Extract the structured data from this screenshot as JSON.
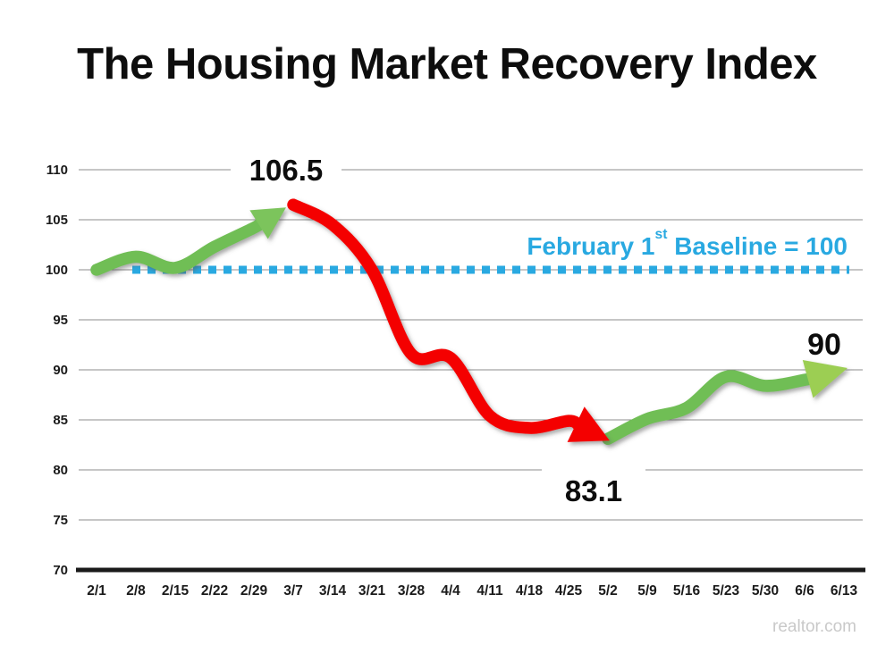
{
  "title": "The Housing Market Recovery Index",
  "watermark": "realtor.com",
  "colors": {
    "green_line": "#6FBE54",
    "green_arrow_mid": "#7CC45C",
    "green_arrow_end": "#9CCE52",
    "red_line": "#F40606",
    "baseline_blue": "#29A9E1",
    "gridline": "#8c8c8c",
    "axis": "#1a1a1a",
    "title_text": "#0d0d0d",
    "watermark_gray": "#c9c9c9"
  },
  "chart_data": {
    "type": "line",
    "title": "The Housing Market Recovery Index",
    "x_labels": [
      "2/1",
      "2/8",
      "2/15",
      "2/22",
      "2/29",
      "3/7",
      "3/14",
      "3/21",
      "3/28",
      "4/4",
      "4/11",
      "4/18",
      "4/25",
      "5/2",
      "5/9",
      "5/16",
      "5/23",
      "5/30",
      "6/6",
      "6/13"
    ],
    "y_ticks": [
      110,
      105,
      100,
      95,
      90,
      85,
      80,
      75,
      70
    ],
    "ylim": [
      70,
      110
    ],
    "grid": "horizontal-only",
    "legend": "none",
    "baseline": {
      "value": 100,
      "style": "dashed",
      "color": "#29A9E1",
      "label_pre": "February 1",
      "label_sup": "st",
      "label_post": " Baseline = 100"
    },
    "series": [
      {
        "name": "rising-feb",
        "color": "#6FBE54",
        "arrow_color": "#7CC45C",
        "points": [
          [
            "2/1",
            100.0
          ],
          [
            "2/8",
            101.3
          ],
          [
            "2/15",
            100.2
          ],
          [
            "2/22",
            102.3
          ],
          [
            "2/29",
            104.2
          ],
          [
            "3/7",
            106.5
          ]
        ]
      },
      {
        "name": "falling",
        "color": "#F40606",
        "arrow_color": "#F40606",
        "points": [
          [
            "3/7",
            106.5
          ],
          [
            "3/14",
            104.5
          ],
          [
            "3/21",
            100.0
          ],
          [
            "3/28",
            91.6
          ],
          [
            "4/4",
            91.2
          ],
          [
            "4/11",
            85.4
          ],
          [
            "4/18",
            84.2
          ],
          [
            "4/25",
            84.9
          ],
          [
            "5/2",
            83.1
          ]
        ]
      },
      {
        "name": "rising-may",
        "color": "#6FBE54",
        "arrow_color": "#9CCE52",
        "points": [
          [
            "5/2",
            83.1
          ],
          [
            "5/9",
            85.1
          ],
          [
            "5/16",
            86.2
          ],
          [
            "5/23",
            89.3
          ],
          [
            "5/30",
            88.4
          ],
          [
            "6/6",
            89.0
          ],
          [
            "6/13",
            90.0
          ]
        ]
      }
    ],
    "annotations": {
      "peak": {
        "text": "106.5",
        "at": "3/7"
      },
      "trough": {
        "text": "83.1",
        "at": "5/2"
      },
      "end": {
        "text": "90",
        "at": "6/13"
      }
    }
  }
}
